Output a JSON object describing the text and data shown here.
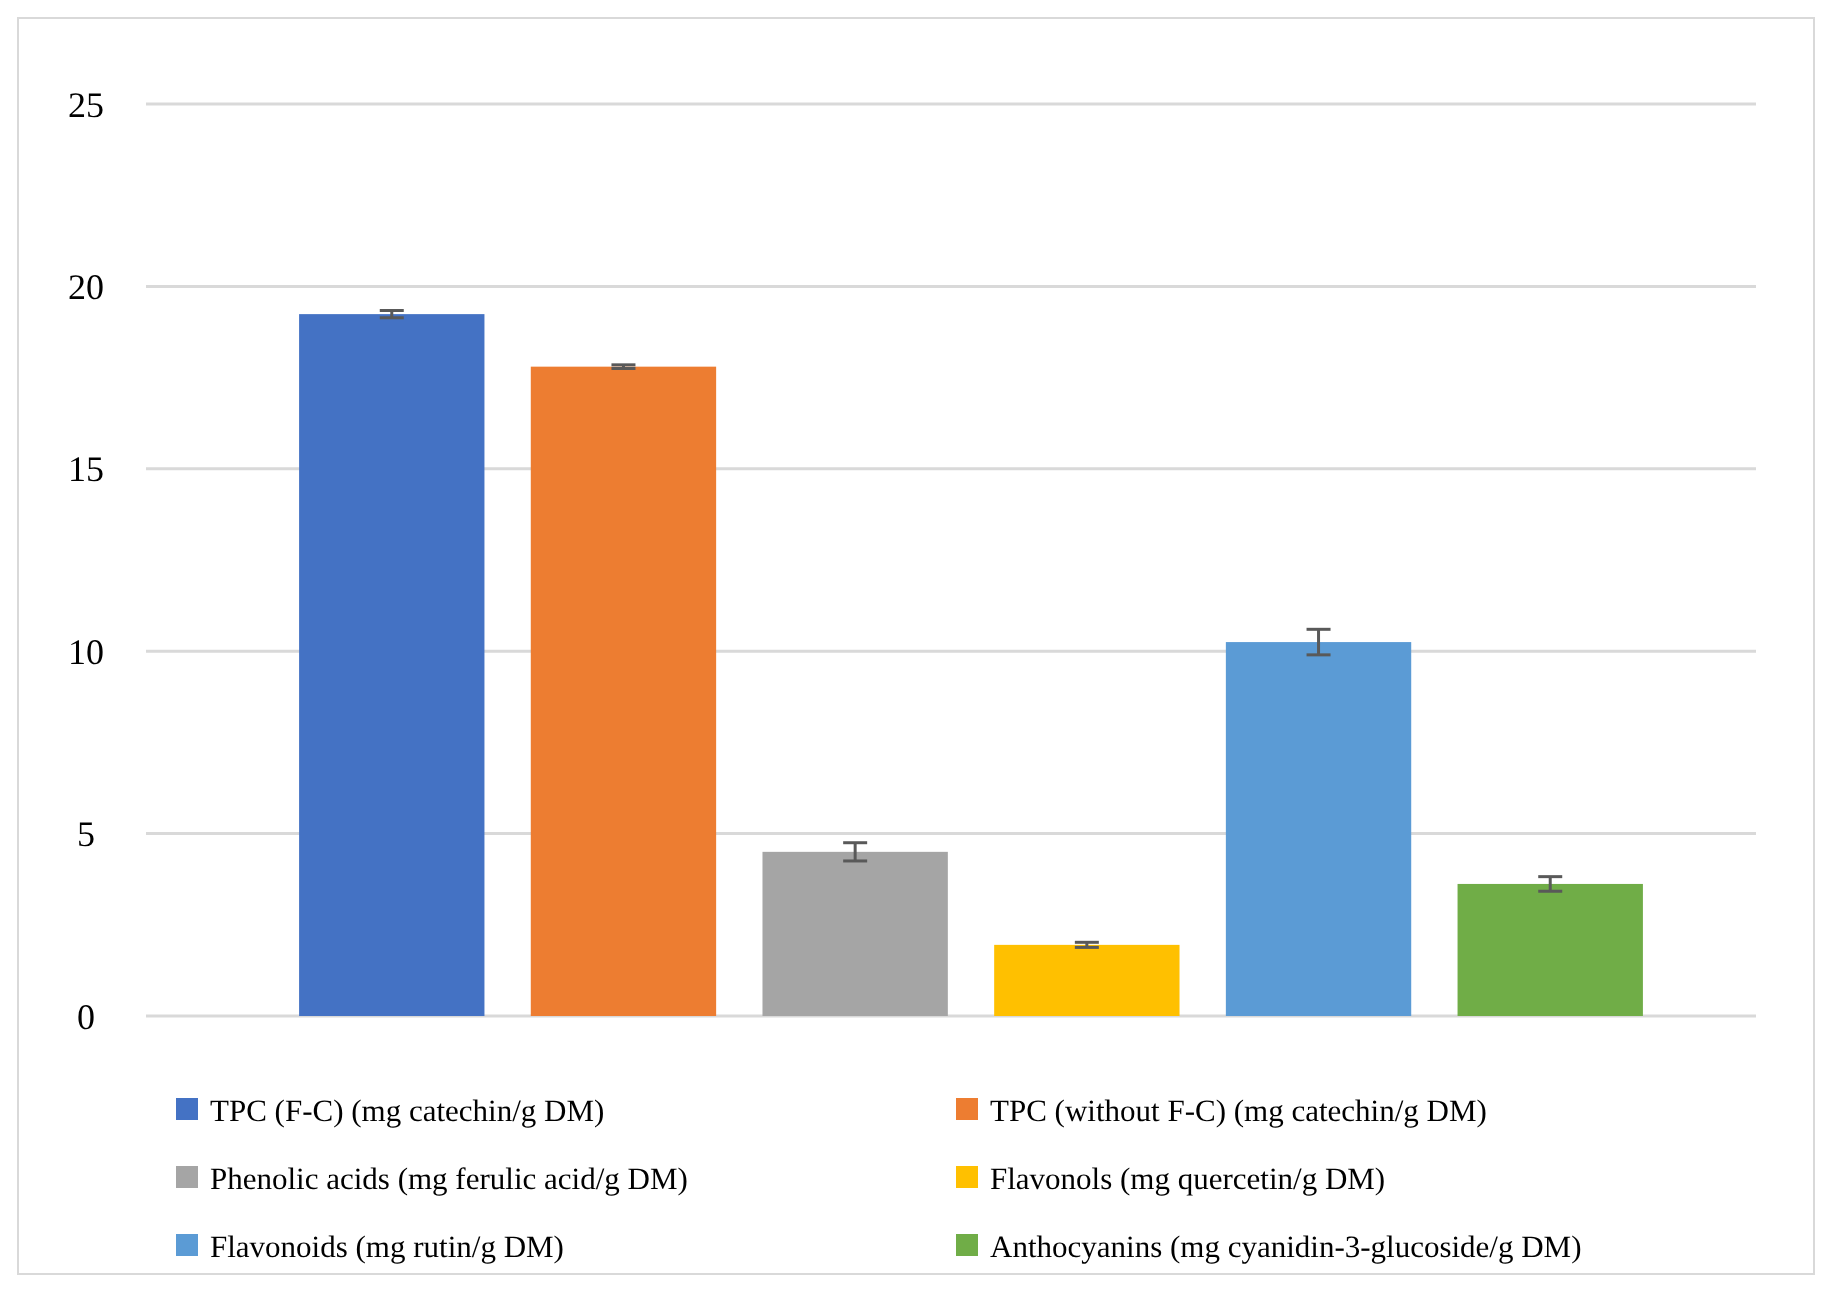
{
  "chart_data": {
    "type": "bar",
    "categories": [
      null
    ],
    "ylim": [
      0,
      25
    ],
    "yticks": [
      0,
      5,
      10,
      15,
      20,
      25
    ],
    "grid": "y",
    "legend": "bottom",
    "series": [
      {
        "name": "TPC (F-C) (mg catechin/g DM)",
        "color": "#4472c4",
        "values": [
          19.24
        ],
        "errors": [
          0.1
        ]
      },
      {
        "name": "TPC (without F-C) (mg catechin/g DM)",
        "color": "#ed7d31",
        "values": [
          17.8
        ],
        "errors": [
          0.05
        ]
      },
      {
        "name": "Phenolic acids (mg ferulic acid/g DM)",
        "color": "#a5a5a5",
        "values": [
          4.5
        ],
        "errors": [
          0.25
        ]
      },
      {
        "name": "Flavonols (mg quercetin/g DM)",
        "color": "#ffc000",
        "values": [
          1.95
        ],
        "errors": [
          0.07
        ]
      },
      {
        "name": "Flavonoids (mg rutin/g DM)",
        "color": "#5b9bd5",
        "values": [
          10.25
        ],
        "errors": [
          0.35
        ]
      },
      {
        "name": "Anthocyanins (mg cyanidin-3-glucoside/g DM)",
        "color": "#70ad47",
        "values": [
          3.62
        ],
        "errors": [
          0.2
        ]
      }
    ]
  }
}
